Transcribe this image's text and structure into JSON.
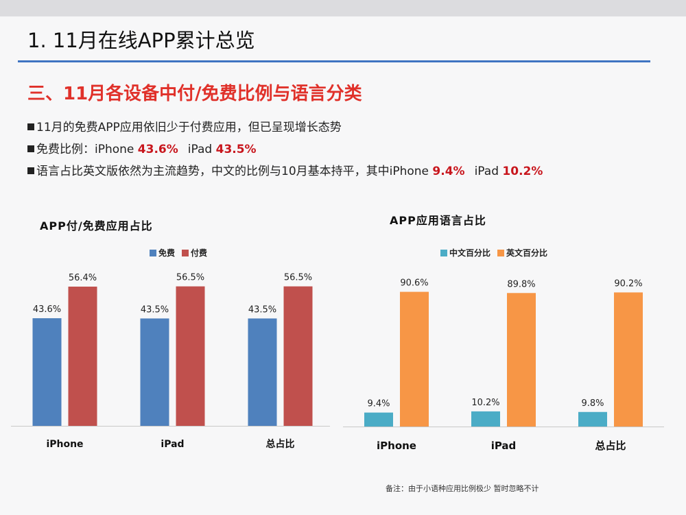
{
  "slide": {
    "title": "1. 11月在线APP累计总览",
    "section_heading": "三、11月各设备中付/免费比例与语言分类",
    "bullets": [
      {
        "text": "11月的免费APP应用依旧少于付费应用，但已呈现增长态势"
      },
      {
        "prefix": "免费比例：iPhone ",
        "v1": "43.6%",
        "mid": "iPad ",
        "v2": "43.5%"
      },
      {
        "prefix": "语言占比英文版依然为主流趋势，中文的比例与10月基本持平，其中iPhone ",
        "v1": "9.4%",
        "mid": "iPad ",
        "v2": "10.2%"
      }
    ],
    "footnote": "备注：由于小语种应用比例极少  暂时忽略不计"
  },
  "chart_data": [
    {
      "type": "bar",
      "title": "APP付/免费应用占比",
      "categories": [
        "iPhone",
        "iPad",
        "总占比"
      ],
      "series": [
        {
          "name": "免费",
          "values": [
            43.6,
            43.5,
            43.5
          ],
          "labels": [
            "43.6%",
            "43.5%",
            "43.5%"
          ],
          "color": "#4f81bd"
        },
        {
          "name": "付费",
          "values": [
            56.4,
            56.5,
            56.5
          ],
          "labels": [
            "56.4%",
            "56.5%",
            "56.5%"
          ],
          "color": "#c0504d"
        }
      ],
      "ylim": [
        0,
        70
      ],
      "legend": "top",
      "grid": false
    },
    {
      "type": "bar",
      "title": "APP应用语言占比",
      "categories": [
        "iPhone",
        "iPad",
        "总占比"
      ],
      "series": [
        {
          "name": "中文百分比",
          "values": [
            9.4,
            10.2,
            9.8
          ],
          "labels": [
            "9.4%",
            "10.2%",
            "9.8%"
          ],
          "color": "#4bacc6"
        },
        {
          "name": "英文百分比",
          "values": [
            90.6,
            89.8,
            90.2
          ],
          "labels": [
            "90.6%",
            "89.8%",
            "90.2%"
          ],
          "color": "#f79646"
        }
      ],
      "ylim": [
        0,
        107
      ],
      "legend": "top",
      "grid": false
    }
  ]
}
